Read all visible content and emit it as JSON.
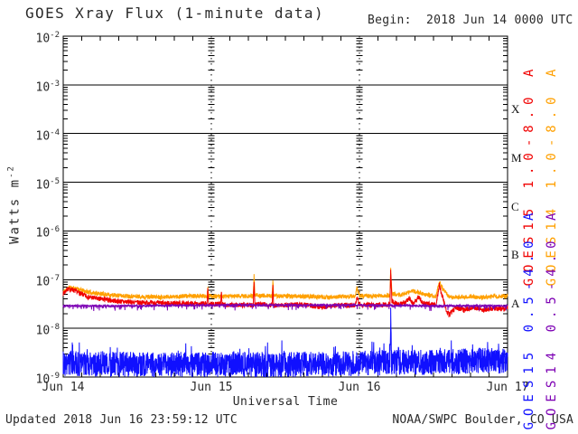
{
  "header": {
    "title": "GOES Xray Flux (1-minute data)",
    "begin": "Begin:  2018 Jun 14 0000 UTC"
  },
  "footer": {
    "updated": "Updated 2018 Jun 16 23:59:12 UTC",
    "credit": "NOAA/SWPC Boulder, CO USA"
  },
  "chart_data": {
    "type": "line",
    "title": "GOES Xray Flux (1-minute data)",
    "xlabel": "Universal Time",
    "ylabel": "Watts m-2",
    "ylabel_base": "Watts m",
    "ylabel_exp": "-2",
    "x_range_hours": [
      0,
      72
    ],
    "x_minor_tick_hours": 3,
    "x_ticks": [
      {
        "hour": 0,
        "label": "Jun 14"
      },
      {
        "hour": 24,
        "label": "Jun 15"
      },
      {
        "hour": 48,
        "label": "Jun 16"
      },
      {
        "hour": 72,
        "label": "Jun 17"
      }
    ],
    "day_boundary_lines_hours": [
      24,
      48
    ],
    "ylim": [
      1e-09,
      0.01
    ],
    "y_log_range": [
      -9,
      -2
    ],
    "y_tick_exponents": [
      -2,
      -3,
      -4,
      -5,
      -6,
      -7,
      -8,
      -9
    ],
    "flare_classes": [
      {
        "label": "X",
        "y_log": -3.5
      },
      {
        "label": "M",
        "y_log": -4.5
      },
      {
        "label": "C",
        "y_log": -5.5
      },
      {
        "label": "B",
        "y_log": -6.5
      },
      {
        "label": "A",
        "y_log": -7.5
      }
    ],
    "grid": {
      "horizontal": "solid line per decade",
      "vertical": "dotted line at day boundaries",
      "legend_position": "right margin, rotated"
    },
    "series": [
      {
        "id": "goes14-long",
        "name": "GOES14 1.0-8.0 A",
        "color": "#ffa000",
        "seed": 11,
        "noise_log": 0.045,
        "spike_prob": 0,
        "spike_tail": 0,
        "points": [
          [
            0,
            5.6e-08
          ],
          [
            1,
            6.9e-08
          ],
          [
            2,
            6.6e-08
          ],
          [
            3.5,
            5.8e-08
          ],
          [
            5,
            5.3e-08
          ],
          [
            8,
            4.8e-08
          ],
          [
            12,
            4.5e-08
          ],
          [
            16,
            4.4e-08
          ],
          [
            20,
            4.6e-08
          ],
          [
            23.3,
            4.6e-08
          ],
          [
            23.42,
            7.2e-08
          ],
          [
            23.55,
            4.6e-08
          ],
          [
            26,
            4.5e-08
          ],
          [
            28,
            4.6e-08
          ],
          [
            30.8,
            4.6e-08
          ],
          [
            30.92,
            1.2e-07
          ],
          [
            31.05,
            4.8e-08
          ],
          [
            33.85,
            4.6e-08
          ],
          [
            33.97,
            1.05e-07
          ],
          [
            34.1,
            4.6e-08
          ],
          [
            37,
            4.6e-08
          ],
          [
            40,
            4.5e-08
          ],
          [
            43,
            4.3e-08
          ],
          [
            45,
            4.5e-08
          ],
          [
            47.3,
            4.6e-08
          ],
          [
            47.6,
            6.6e-08
          ],
          [
            48,
            4.7e-08
          ],
          [
            50,
            4.6e-08
          ],
          [
            52.95,
            4.7e-08
          ],
          [
            53.07,
            1.65e-07
          ],
          [
            53.25,
            5.2e-08
          ],
          [
            54.5,
            4.8e-08
          ],
          [
            55.8,
            5.3e-08
          ],
          [
            56.5,
            5.9e-08
          ],
          [
            57.5,
            5.6e-08
          ],
          [
            58.5,
            5e-08
          ],
          [
            60.4,
            4.5e-08
          ],
          [
            60.95,
            8.8e-08
          ],
          [
            61.6,
            6.2e-08
          ],
          [
            62.5,
            4.5e-08
          ],
          [
            64,
            4.3e-08
          ],
          [
            66,
            4.5e-08
          ],
          [
            68,
            4.3e-08
          ],
          [
            70,
            4.5e-08
          ],
          [
            72,
            4.6e-08
          ]
        ]
      },
      {
        "id": "goes15-long",
        "name": "GOES15 1.0-8.0 A",
        "color": "#f00000",
        "seed": 7,
        "noise_log": 0.05,
        "spike_prob": 0,
        "spike_tail": 0,
        "points": [
          [
            0,
            5.2e-08
          ],
          [
            0.7,
            6.4e-08
          ],
          [
            1.5,
            6.2e-08
          ],
          [
            2.5,
            5.4e-08
          ],
          [
            4,
            4.4e-08
          ],
          [
            6,
            4e-08
          ],
          [
            9,
            3.6e-08
          ],
          [
            12,
            3.4e-08
          ],
          [
            16,
            3.3e-08
          ],
          [
            20,
            3.2e-08
          ],
          [
            23.3,
            3.2e-08
          ],
          [
            23.42,
            6.3e-08
          ],
          [
            23.55,
            3.2e-08
          ],
          [
            25.5,
            3.1e-08
          ],
          [
            25.62,
            5.6e-08
          ],
          [
            25.75,
            3.1e-08
          ],
          [
            27,
            3e-08
          ],
          [
            30.8,
            3e-08
          ],
          [
            30.92,
            8.2e-08
          ],
          [
            31.05,
            3.2e-08
          ],
          [
            33.85,
            3e-08
          ],
          [
            33.97,
            7.4e-08
          ],
          [
            34.1,
            3e-08
          ],
          [
            36,
            3e-08
          ],
          [
            39,
            3.1e-08
          ],
          [
            42,
            2.7e-08
          ],
          [
            44.5,
            3e-08
          ],
          [
            47.3,
            3e-08
          ],
          [
            47.6,
            4.4e-08
          ],
          [
            48,
            3.1e-08
          ],
          [
            50,
            3e-08
          ],
          [
            52.95,
            3.1e-08
          ],
          [
            53.07,
            1.5e-07
          ],
          [
            53.25,
            3.6e-08
          ],
          [
            54.2,
            3.1e-08
          ],
          [
            55.6,
            3.6e-08
          ],
          [
            56.1,
            4.1e-08
          ],
          [
            56.7,
            3.2e-08
          ],
          [
            57.6,
            4.3e-08
          ],
          [
            58.3,
            3.3e-08
          ],
          [
            60.4,
            3e-08
          ],
          [
            60.95,
            7.8e-08
          ],
          [
            61.4,
            4.6e-08
          ],
          [
            62.1,
            2.3e-08
          ],
          [
            62.6,
            1.9e-08
          ],
          [
            63.6,
            2.7e-08
          ],
          [
            65,
            2.4e-08
          ],
          [
            66.5,
            2.7e-08
          ],
          [
            68,
            2.4e-08
          ],
          [
            70,
            2.6e-08
          ],
          [
            71.5,
            2.5e-08
          ],
          [
            72,
            2.7e-08
          ]
        ]
      },
      {
        "id": "goes14-short",
        "name": "GOES14 0.5-4.0 A",
        "color": "#7d00b4",
        "seed": 5,
        "noise_log": 0.022,
        "spike_prob": 0.06,
        "spike_tail": -0.1,
        "points": [
          [
            0,
            2.9e-08
          ],
          [
            12,
            2.9e-08
          ],
          [
            24,
            3e-08
          ],
          [
            36,
            3e-08
          ],
          [
            48,
            3e-08
          ],
          [
            60,
            2.9e-08
          ],
          [
            72,
            2.9e-08
          ]
        ]
      },
      {
        "id": "goes15-short",
        "name": "GOES15 0.5-4.0 A",
        "color": "#1010ff",
        "seed": 3,
        "noise_log": 0.26,
        "spike_prob": 0.05,
        "spike_tail": 0.28,
        "points": [
          [
            0,
            1.9e-09
          ],
          [
            12,
            1.8e-09
          ],
          [
            24,
            1.8e-09
          ],
          [
            36,
            1.8e-09
          ],
          [
            48,
            1.9e-09
          ],
          [
            52.95,
            2e-09
          ],
          [
            53.07,
            1.05e-08
          ],
          [
            53.2,
            2e-09
          ],
          [
            60,
            2e-09
          ],
          [
            64,
            2.1e-09
          ],
          [
            68,
            2.2e-09
          ],
          [
            72,
            2.1e-09
          ]
        ]
      }
    ],
    "legend": [
      {
        "id": "goes15-long",
        "label": "GOES15 1.0-8.0 A",
        "color": "#f00000",
        "col": 0,
        "row": "long"
      },
      {
        "id": "goes14-long",
        "label": "GOES14 1.0-8.0 A",
        "color": "#ffa000",
        "col": 1,
        "row": "long"
      },
      {
        "id": "goes15-short",
        "label": "GOES15 0.5-4.0 A",
        "color": "#1010ff",
        "col": 0,
        "row": "short"
      },
      {
        "id": "goes14-short",
        "label": "GOES14 0.5-4.0 A",
        "color": "#7d00b4",
        "col": 1,
        "row": "short"
      }
    ]
  }
}
